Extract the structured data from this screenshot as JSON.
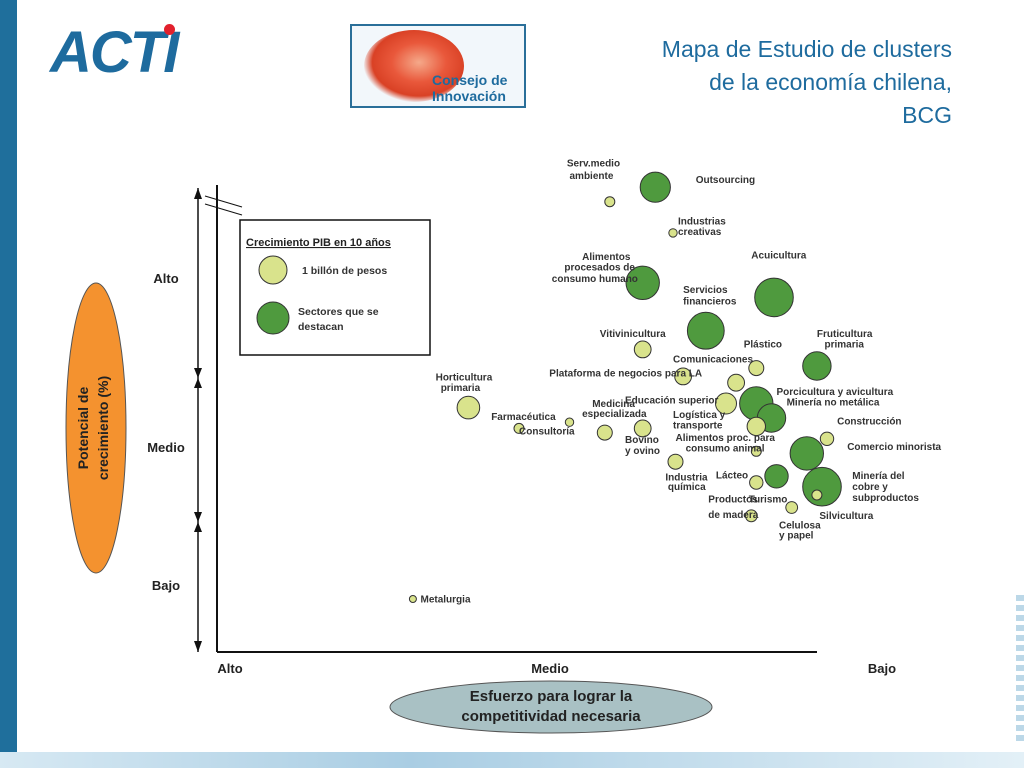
{
  "header": {
    "acti_logo_text": "ACTI",
    "consejo_logo_line1": "Consejo de",
    "consejo_logo_line2": "Innovación",
    "title_lines": [
      "Mapa de Estudio de clusters",
      "de la economía chilena,",
      "BCG"
    ]
  },
  "colors": {
    "brand_blue": "#1e6b9e",
    "bubble_light": "#d9e38c",
    "bubble_dark": "#4f9a3e",
    "y_badge": "#f4922f",
    "x_badge": "#a9c1c4"
  },
  "chart_data": {
    "type": "scatter",
    "title": "",
    "xlabel": "Esfuerzo para lograr la competitividad necesaria",
    "ylabel": "Potencial de crecimiento (%)",
    "x_tick_labels": [
      "Alto",
      "Medio",
      "Bajo"
    ],
    "y_tick_labels": [
      "Alto",
      "Medio",
      "Bajo"
    ],
    "xlim": [
      0,
      1
    ],
    "ylim": [
      0,
      1
    ],
    "grid": false,
    "legend": {
      "placement": "top-left",
      "title": "Crecimiento PIB en 10 años",
      "entries": [
        {
          "label": "1 billón de pesos",
          "kind": "light"
        },
        {
          "label": "Sectores que se destacan",
          "kind": "dark"
        }
      ]
    },
    "points": [
      {
        "name": "Serv.medio ambiente",
        "x": 0.57,
        "y": 0.955,
        "size": 0.12,
        "kind": "light"
      },
      {
        "name": "Outsourcing",
        "x": 0.66,
        "y": 0.99,
        "size": 0.36,
        "kind": "dark"
      },
      {
        "name": "Industrias creativas",
        "x": 0.695,
        "y": 0.88,
        "size": 0.1,
        "kind": "light"
      },
      {
        "name": "Alimentos procesados de consumo humano",
        "x": 0.635,
        "y": 0.76,
        "size": 0.4,
        "kind": "dark"
      },
      {
        "name": "Servicios financieros",
        "x": 0.76,
        "y": 0.645,
        "size": 0.44,
        "kind": "dark"
      },
      {
        "name": "Acuicultura",
        "x": 0.895,
        "y": 0.725,
        "size": 0.46,
        "kind": "dark"
      },
      {
        "name": "Vitivinicultura",
        "x": 0.635,
        "y": 0.6,
        "size": 0.2,
        "kind": "light"
      },
      {
        "name": "Plástico",
        "x": 0.86,
        "y": 0.555,
        "size": 0.18,
        "kind": "light"
      },
      {
        "name": "Fruticultura primaria",
        "x": 0.98,
        "y": 0.56,
        "size": 0.34,
        "kind": "dark"
      },
      {
        "name": "Comunicaciones",
        "x": 0.82,
        "y": 0.52,
        "size": 0.2,
        "kind": "light"
      },
      {
        "name": "Plataforma de negocios para LA",
        "x": 0.715,
        "y": 0.535,
        "size": 0.2,
        "kind": "light"
      },
      {
        "name": "Horticultura primaria",
        "x": 0.29,
        "y": 0.46,
        "size": 0.27,
        "kind": "light"
      },
      {
        "name": "Educación superior",
        "x": 0.8,
        "y": 0.47,
        "size": 0.25,
        "kind": "light"
      },
      {
        "name": "Porcicultura y avicultura",
        "x": 0.86,
        "y": 0.47,
        "size": 0.4,
        "kind": "dark"
      },
      {
        "name": "Minería no metálica",
        "x": 0.89,
        "y": 0.435,
        "size": 0.34,
        "kind": "dark"
      },
      {
        "name": "Farmacéutica",
        "x": 0.39,
        "y": 0.41,
        "size": 0.12,
        "kind": "light"
      },
      {
        "name": "Consultoría",
        "x": 0.49,
        "y": 0.425,
        "size": 0.1,
        "kind": "light"
      },
      {
        "name": "Medicina especializada",
        "x": 0.56,
        "y": 0.4,
        "size": 0.18,
        "kind": "light"
      },
      {
        "name": "Bovino y ovino",
        "x": 0.635,
        "y": 0.41,
        "size": 0.2,
        "kind": "light"
      },
      {
        "name": "Logística y transporte",
        "x": 0.86,
        "y": 0.415,
        "size": 0.22,
        "kind": "light"
      },
      {
        "name": "Construcción",
        "x": 1.0,
        "y": 0.385,
        "size": 0.16,
        "kind": "light"
      },
      {
        "name": "Comercio minorista",
        "x": 0.96,
        "y": 0.35,
        "size": 0.4,
        "kind": "dark"
      },
      {
        "name": "Alimentos proc. para consumo animal",
        "x": 0.86,
        "y": 0.355,
        "size": 0.12,
        "kind": "light"
      },
      {
        "name": "Industria química",
        "x": 0.7,
        "y": 0.33,
        "size": 0.18,
        "kind": "light"
      },
      {
        "name": "Lácteo",
        "x": 0.86,
        "y": 0.28,
        "size": 0.16,
        "kind": "light"
      },
      {
        "name": "Minería del cobre y subproductos",
        "x": 0.99,
        "y": 0.27,
        "size": 0.46,
        "kind": "dark"
      },
      {
        "name": "Turismo",
        "x": 0.9,
        "y": 0.295,
        "size": 0.28,
        "kind": "dark"
      },
      {
        "name": "Silvicultura",
        "x": 0.98,
        "y": 0.25,
        "size": 0.12,
        "kind": "light"
      },
      {
        "name": "Celulosa y papel",
        "x": 0.93,
        "y": 0.22,
        "size": 0.14,
        "kind": "light"
      },
      {
        "name": "Productos de madera",
        "x": 0.85,
        "y": 0.2,
        "size": 0.14,
        "kind": "light"
      },
      {
        "name": "Metalurgia",
        "x": 0.18,
        "y": 0.0,
        "size": 0.08,
        "kind": "light"
      }
    ],
    "labels": [
      {
        "text": "Serv.medio",
        "anchor": [
          0.485,
          1.04
        ]
      },
      {
        "text": "ambiente",
        "anchor": [
          0.49,
          1.01
        ]
      },
      {
        "text": "Outsourcing",
        "anchor": [
          0.74,
          1.0
        ]
      },
      {
        "text": "Industrias",
        "anchor": [
          0.705,
          0.9
        ]
      },
      {
        "text": "creativas",
        "anchor": [
          0.705,
          0.875
        ]
      },
      {
        "text": "Alimentos",
        "anchor": [
          0.515,
          0.815
        ]
      },
      {
        "text": "procesados de",
        "anchor": [
          0.48,
          0.79
        ]
      },
      {
        "text": "consumo humano",
        "anchor": [
          0.455,
          0.762
        ]
      },
      {
        "text": "Servicios",
        "anchor": [
          0.715,
          0.735
        ]
      },
      {
        "text": "financieros",
        "anchor": [
          0.715,
          0.708
        ]
      },
      {
        "text": "Acuicultura",
        "anchor": [
          0.85,
          0.818
        ]
      },
      {
        "text": "Vitivinicultura",
        "anchor": [
          0.55,
          0.63
        ]
      },
      {
        "text": "Plástico",
        "anchor": [
          0.835,
          0.605
        ]
      },
      {
        "text": "Fruticultura",
        "anchor": [
          0.98,
          0.63
        ]
      },
      {
        "text": "primaria",
        "anchor": [
          0.995,
          0.605
        ]
      },
      {
        "text": "Comunicaciones",
        "anchor": [
          0.695,
          0.568
        ]
      },
      {
        "text": "Plataforma de negocios para LA",
        "anchor": [
          0.45,
          0.535
        ]
      },
      {
        "text": "Horticultura",
        "anchor": [
          0.225,
          0.525
        ]
      },
      {
        "text": "primaria",
        "anchor": [
          0.235,
          0.5
        ]
      },
      {
        "text": "Educación superior",
        "anchor": [
          0.6,
          0.47
        ]
      },
      {
        "text": "Porcicultura y avicultura",
        "anchor": [
          0.9,
          0.49
        ]
      },
      {
        "text": "Minería no metálica",
        "anchor": [
          0.92,
          0.465
        ]
      },
      {
        "text": "Farmacéutica",
        "anchor": [
          0.335,
          0.43
        ]
      },
      {
        "text": "Medicina",
        "anchor": [
          0.535,
          0.462
        ]
      },
      {
        "text": "especializada",
        "anchor": [
          0.515,
          0.437
        ]
      },
      {
        "text": "Consultoría",
        "anchor": [
          0.39,
          0.395
        ]
      },
      {
        "text": "Logística y",
        "anchor": [
          0.695,
          0.435
        ]
      },
      {
        "text": "transporte",
        "anchor": [
          0.695,
          0.41
        ]
      },
      {
        "text": "Construcción",
        "anchor": [
          1.02,
          0.42
        ]
      },
      {
        "text": "Bovino",
        "anchor": [
          0.6,
          0.375
        ]
      },
      {
        "text": "y ovino",
        "anchor": [
          0.6,
          0.348
        ]
      },
      {
        "text": "Alimentos proc. para",
        "anchor": [
          0.7,
          0.38
        ]
      },
      {
        "text": "consumo animal",
        "anchor": [
          0.72,
          0.355
        ]
      },
      {
        "text": "Comercio minorista",
        "anchor": [
          1.04,
          0.358
        ]
      },
      {
        "text": "Lácteo",
        "anchor": [
          0.78,
          0.29
        ]
      },
      {
        "text": "Industria",
        "anchor": [
          0.68,
          0.285
        ]
      },
      {
        "text": "química",
        "anchor": [
          0.685,
          0.262
        ]
      },
      {
        "text": "Minería del",
        "anchor": [
          1.05,
          0.288
        ]
      },
      {
        "text": "cobre y",
        "anchor": [
          1.05,
          0.262
        ]
      },
      {
        "text": "subproductos",
        "anchor": [
          1.05,
          0.235
        ]
      },
      {
        "text": "Productos",
        "anchor": [
          0.765,
          0.232
        ]
      },
      {
        "text": "Turismo",
        "anchor": [
          0.845,
          0.232
        ]
      },
      {
        "text": "de madera",
        "anchor": [
          0.765,
          0.195
        ]
      },
      {
        "text": "Silvicultura",
        "anchor": [
          0.985,
          0.192
        ]
      },
      {
        "text": "Celulosa",
        "anchor": [
          0.905,
          0.17
        ]
      },
      {
        "text": "y papel",
        "anchor": [
          0.905,
          0.145
        ]
      },
      {
        "text": "Metalurgia",
        "anchor": [
          0.195,
          -0.008
        ]
      }
    ]
  }
}
